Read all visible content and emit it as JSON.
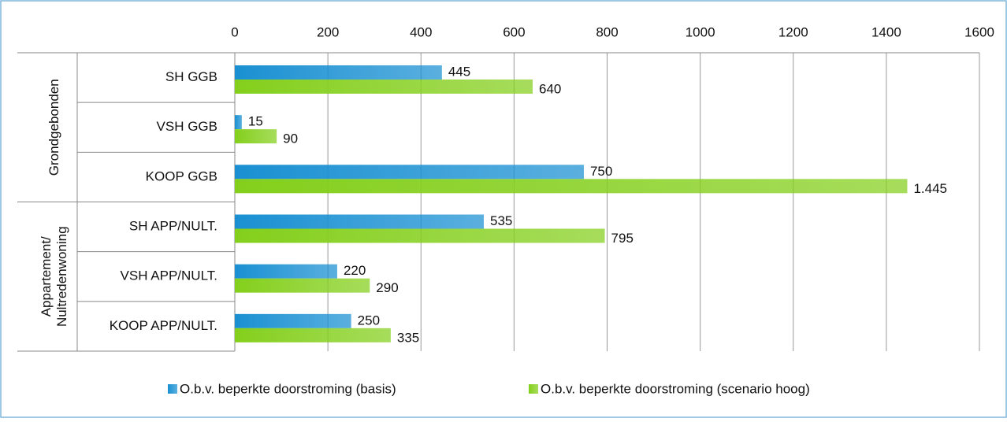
{
  "chart_data": {
    "type": "bar",
    "orientation": "horizontal",
    "categories": [
      "SH GGB",
      "VSH GGB",
      "KOOP GGB",
      "SH APP/NULT.",
      "VSH APP/NULT.",
      "KOOP APP/NULT."
    ],
    "groups": [
      [
        "Grondgebonden"
      ],
      [
        "Appartement/",
        "Nultredenwoning"
      ]
    ],
    "series": [
      {
        "name": "O.b.v. beperkte doorstroming (basis)",
        "color": "#1a90d2",
        "values": [
          445,
          15,
          750,
          535,
          220,
          250
        ]
      },
      {
        "name": "O.b.v. beperkte doorstroming (scenario hoog)",
        "color": "#84cf1c",
        "values": [
          640,
          90,
          1445,
          795,
          290,
          335
        ],
        "value_labels": [
          "640",
          "90",
          "1.445",
          "795",
          "290",
          "335"
        ]
      }
    ],
    "xlim": [
      0,
      1600
    ],
    "xticks": [
      0,
      200,
      400,
      600,
      800,
      1000,
      1200,
      1400,
      1600
    ],
    "grid": true,
    "legend": "bottom"
  }
}
